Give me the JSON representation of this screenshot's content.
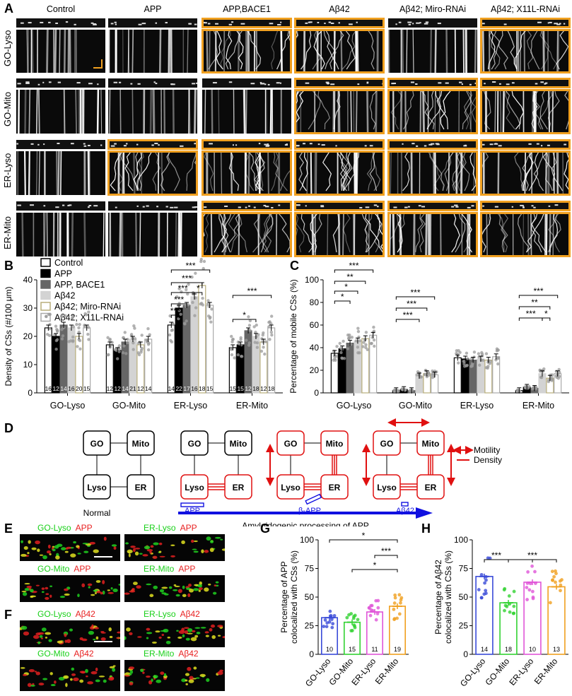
{
  "panels": {
    "A": "A",
    "B": "B",
    "C": "C",
    "D": "D",
    "E": "E",
    "F": "F",
    "G": "G",
    "H": "H"
  },
  "panelA": {
    "columns": [
      "Control",
      "APP",
      "APP,BACE1",
      "Aβ42",
      "Aβ42; Miro-RNAi",
      "Aβ42; X11L-RNAi"
    ],
    "rows": [
      "GO-Lyso",
      "GO-Mito",
      "ER-Lyso",
      "ER-Mito"
    ],
    "highlighted": [
      [
        false,
        false,
        true,
        true,
        false,
        true
      ],
      [
        false,
        false,
        false,
        true,
        true,
        true
      ],
      [
        false,
        true,
        true,
        true,
        true,
        true
      ],
      [
        false,
        false,
        true,
        true,
        true,
        true
      ]
    ],
    "highlight_color": "#f0a020"
  },
  "legend": {
    "entries": [
      {
        "label": "Control",
        "color": "#ffffff",
        "border": "#000"
      },
      {
        "label": "APP",
        "color": "#000000",
        "border": "#000"
      },
      {
        "label": "APP, BACE1",
        "color": "#666666",
        "border": "#666"
      },
      {
        "label": "Aβ42",
        "color": "#d3d3d3",
        "border": "#d3d3d3"
      },
      {
        "label": "Aβ42; Miro-RNAi",
        "color": "#ffffff",
        "border": "#b8ad7a"
      },
      {
        "label": "Aβ42; X11L-RNAi",
        "color": "#ffffff",
        "border": "#aaaaaa"
      }
    ]
  },
  "chart_data": [
    {
      "id": "B",
      "type": "bar",
      "ylabel": "Density of CSs (#/100 μm)",
      "ylim": [
        0,
        40
      ],
      "yticks": [
        0,
        10,
        20,
        30,
        40
      ],
      "categories": [
        "GO-Lyso",
        "GO-Mito",
        "ER-Lyso",
        "ER-Mito"
      ],
      "series": [
        {
          "name": "Control",
          "values": [
            23,
            17,
            24,
            16
          ],
          "n": [
            16,
            12,
            14,
            15
          ]
        },
        {
          "name": "APP",
          "values": [
            20,
            15,
            30,
            17
          ],
          "n": [
            12,
            12,
            22,
            15
          ]
        },
        {
          "name": "APP, BACE1",
          "values": [
            24,
            18,
            31,
            22
          ],
          "n": [
            14,
            14,
            17,
            12
          ]
        },
        {
          "name": "Aβ42",
          "values": [
            23,
            19,
            34,
            20
          ],
          "n": [
            16,
            21,
            16,
            18
          ]
        },
        {
          "name": "Aβ42; Miro-RNAi",
          "values": [
            20,
            17,
            38,
            18
          ],
          "n": [
            20,
            12,
            18,
            12
          ]
        },
        {
          "name": "Aβ42; X11L-RNAi",
          "values": [
            23,
            19,
            31,
            23
          ],
          "n": [
            15,
            14,
            15,
            18
          ]
        }
      ],
      "significance": [
        "***",
        "***",
        "***",
        "*",
        "***",
        "***",
        "***",
        "*"
      ]
    },
    {
      "id": "C",
      "type": "bar",
      "ylabel": "Percentage of mobile CSs (%)",
      "ylim": [
        0,
        100
      ],
      "yticks": [
        0,
        20,
        40,
        60,
        80,
        100
      ],
      "categories": [
        "GO-Lyso",
        "GO-Mito",
        "ER-Lyso",
        "ER-Mito"
      ],
      "series": [
        {
          "name": "Control",
          "values": [
            35,
            2,
            31,
            2
          ]
        },
        {
          "name": "APP",
          "values": [
            39,
            3,
            30,
            5
          ]
        },
        {
          "name": "APP, BACE1",
          "values": [
            44,
            2,
            29,
            4
          ]
        },
        {
          "name": "Aβ42",
          "values": [
            46,
            15,
            30,
            17
          ]
        },
        {
          "name": "Aβ42; Miro-RNAi",
          "values": [
            48,
            17,
            29,
            13
          ]
        },
        {
          "name": "Aβ42; X11L-RNAi",
          "values": [
            51,
            16,
            32,
            17
          ]
        }
      ],
      "significance": [
        "***",
        "**",
        "*",
        "*",
        "***",
        "***",
        "***",
        "***",
        "**",
        "***",
        "*"
      ]
    },
    {
      "id": "G",
      "type": "bar",
      "ylabel": "Percentage of APP colocalized with CSs (%)",
      "ylim": [
        0,
        100
      ],
      "yticks": [
        0,
        25,
        50,
        75,
        100
      ],
      "categories": [
        "GO-Lyso",
        "GO-Mito",
        "ER-Lyso",
        "ER-Mito"
      ],
      "values": [
        32,
        28,
        37,
        42
      ],
      "n": [
        10,
        15,
        11,
        19
      ],
      "colors": [
        "#3a4bd8",
        "#32d232",
        "#e055d8",
        "#f0a020"
      ],
      "significance": [
        "*",
        "***",
        "*"
      ]
    },
    {
      "id": "H",
      "type": "bar",
      "ylabel": "Percentage of Aβ42 colocalized with CSs (%)",
      "ylim": [
        0,
        100
      ],
      "yticks": [
        0,
        25,
        50,
        75,
        100
      ],
      "categories": [
        "GO-Lyso",
        "GO-Mito",
        "ER-Lyso",
        "ER-Mito"
      ],
      "values": [
        68,
        45,
        63,
        59
      ],
      "n": [
        14,
        18,
        10,
        13
      ],
      "colors": [
        "#3a4bd8",
        "#32d232",
        "#e055d8",
        "#f0a020"
      ],
      "significance": [
        "***",
        "***"
      ]
    }
  ],
  "panelD": {
    "nodes": [
      "GO",
      "Mito",
      "Lyso",
      "ER"
    ],
    "legend": [
      {
        "label": "Motility",
        "color": "#e01010"
      },
      {
        "label": "Density",
        "color": "#e01010"
      }
    ],
    "stages": [
      "Normal"
    ],
    "arrow_label": "Amyloidogenic processing of APP",
    "molecules": [
      "APP",
      "β-APP",
      "Aβ42"
    ],
    "arrow_color": "#1010e0"
  },
  "panelE": {
    "rows": [
      [
        {
          "g": "GO-Lyso",
          "r": "APP"
        },
        {
          "g": "ER-Lyso",
          "r": "APP"
        }
      ],
      [
        {
          "g": "GO-Mito",
          "r": "APP"
        },
        {
          "g": "ER-Mito",
          "r": "APP"
        }
      ]
    ]
  },
  "panelF": {
    "rows": [
      [
        {
          "g": "GO-Lyso",
          "r": "Aβ42"
        },
        {
          "g": "ER-Lyso",
          "r": "Aβ42"
        }
      ],
      [
        {
          "g": "GO-Mito",
          "r": "Aβ42"
        },
        {
          "g": "ER-Mito",
          "r": "Aβ42"
        }
      ]
    ]
  }
}
